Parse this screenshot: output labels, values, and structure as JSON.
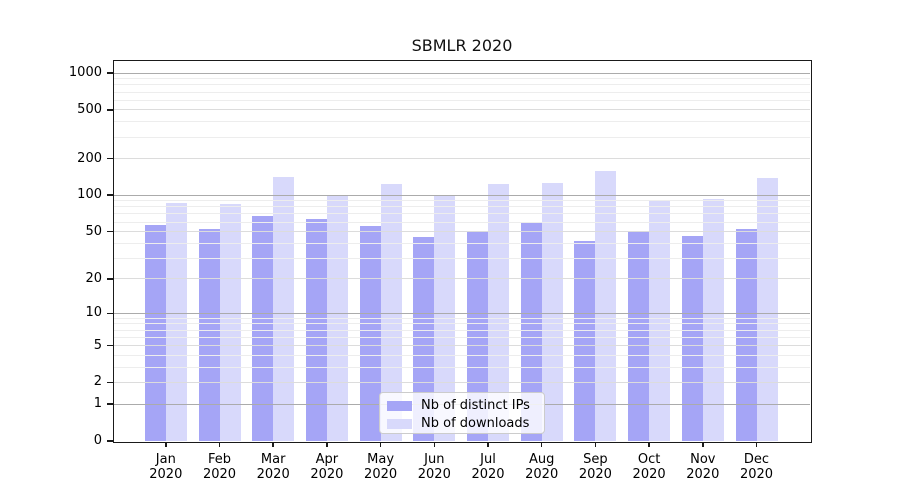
{
  "title": "SBMLR 2020",
  "chart_data": {
    "type": "bar",
    "title": "SBMLR 2020",
    "categories": [
      "Jan",
      "Feb",
      "Mar",
      "Apr",
      "May",
      "Jun",
      "Jul",
      "Aug",
      "Sep",
      "Oct",
      "Nov",
      "Dec"
    ],
    "year_label": "2020",
    "series": [
      {
        "name": "Nb of distinct IPs",
        "color": "#a5a5f6",
        "values": [
          57,
          53,
          67,
          63,
          56,
          45,
          51,
          60,
          42,
          50,
          46,
          53
        ]
      },
      {
        "name": "Nb of downloads",
        "color": "#d8d9fb",
        "values": [
          87,
          85,
          140,
          98,
          123,
          98,
          123,
          125,
          158,
          90,
          93,
          138
        ]
      }
    ],
    "yscale": "symlog",
    "y_ticks": [
      0,
      1,
      2,
      5,
      10,
      20,
      50,
      100,
      200,
      500,
      1000
    ],
    "ylim": [
      0,
      1250
    ],
    "grid": true,
    "legend_position": "lower center"
  },
  "colors": {
    "background": "#ffffff",
    "axis": "#1a1a1a",
    "grid_major": "#ababab",
    "grid_mid": "#dcdcdc",
    "grid_minor": "#ededed",
    "legend_border": "#cccccc"
  }
}
